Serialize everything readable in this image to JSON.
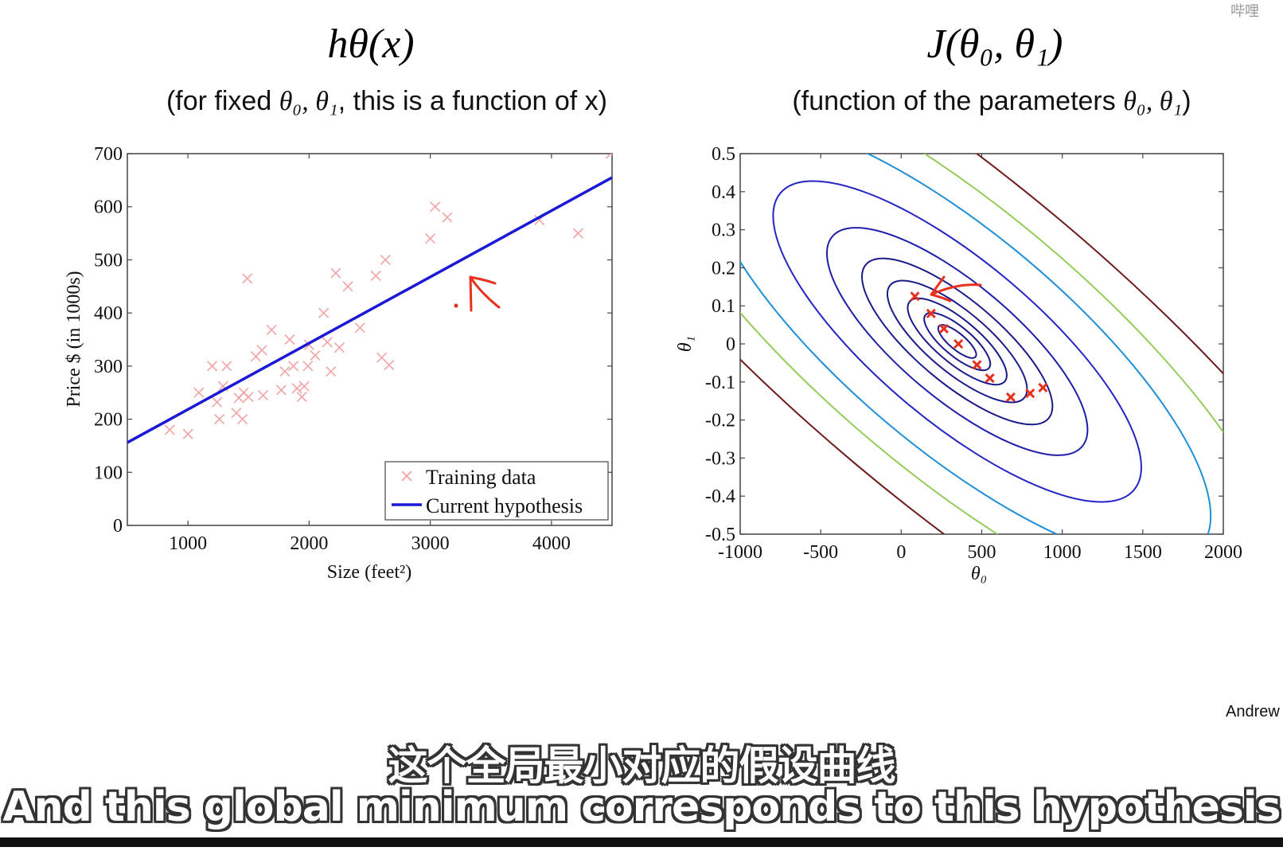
{
  "slide": {
    "left_title": "hθ(x)",
    "left_subtitle_pre": "(for fixed ",
    "left_subtitle_params": "θ₀, θ₁",
    "left_subtitle_post": ", this is a function of x)",
    "right_title": "J(θ₀, θ₁)",
    "right_subtitle_pre": "(function of the parameters ",
    "right_subtitle_params": "θ₀, θ₁",
    "right_subtitle_post": ")",
    "author": "Andrew",
    "logo_text": "哔哩"
  },
  "subtitles": {
    "chinese": "这个全局最小对应的假设曲线",
    "english": "And this global minimum corresponds to this hypothesis"
  },
  "colors": {
    "data_marker": "#f2a4a4",
    "hypothesis_line": "#1a1ad6",
    "annotation": "#e8301c",
    "gd_marker": "#e8301c"
  },
  "chart_data": [
    {
      "type": "scatter",
      "name": "hypothesis-plot",
      "xlabel": "Size (feet²)",
      "ylabel": "Price $ (in 1000s)",
      "xlim": [
        500,
        4500
      ],
      "ylim": [
        0,
        700
      ],
      "xticks": [
        1000,
        2000,
        3000,
        4000
      ],
      "yticks": [
        0,
        100,
        200,
        300,
        400,
        500,
        600,
        700
      ],
      "grid": false,
      "legend_position": "bottom-right",
      "series": [
        {
          "name": "Training data",
          "marker": "x",
          "points": [
            [
              850,
              180
            ],
            [
              1000,
              172
            ],
            [
              1090,
              250
            ],
            [
              1200,
              300
            ],
            [
              1240,
              232
            ],
            [
              1260,
              200
            ],
            [
              1290,
              262
            ],
            [
              1320,
              300
            ],
            [
              1400,
              212
            ],
            [
              1420,
              240
            ],
            [
              1450,
              200
            ],
            [
              1460,
              250
            ],
            [
              1490,
              465
            ],
            [
              1500,
              242
            ],
            [
              1560,
              318
            ],
            [
              1610,
              330
            ],
            [
              1620,
              245
            ],
            [
              1690,
              368
            ],
            [
              1770,
              255
            ],
            [
              1800,
              290
            ],
            [
              1840,
              350
            ],
            [
              1870,
              300
            ],
            [
              1900,
              258
            ],
            [
              1940,
              242
            ],
            [
              1960,
              262
            ],
            [
              1990,
              300
            ],
            [
              2000,
              340
            ],
            [
              2050,
              320
            ],
            [
              2120,
              400
            ],
            [
              2150,
              345
            ],
            [
              2180,
              290
            ],
            [
              2220,
              475
            ],
            [
              2250,
              335
            ],
            [
              2320,
              450
            ],
            [
              2420,
              372
            ],
            [
              2550,
              470
            ],
            [
              2600,
              316
            ],
            [
              2630,
              500
            ],
            [
              2660,
              302
            ],
            [
              3000,
              540
            ],
            [
              3040,
              600
            ],
            [
              3140,
              580
            ],
            [
              3900,
              575
            ],
            [
              4220,
              550
            ],
            [
              4490,
              700
            ]
          ]
        },
        {
          "name": "Current hypothesis",
          "line": [
            [
              500,
              156
            ],
            [
              4500,
              655
            ]
          ]
        }
      ]
    },
    {
      "type": "contour",
      "name": "cost-contour",
      "xlabel": "θ₀",
      "ylabel": "θ₁",
      "xlim": [
        -1000,
        2000
      ],
      "ylim": [
        -0.5,
        0.5
      ],
      "xticks": [
        -1000,
        -500,
        0,
        500,
        1000,
        1500,
        2000
      ],
      "yticks": [
        0.5,
        0.4,
        0.3,
        0.2,
        0.1,
        0,
        -0.1,
        -0.2,
        -0.3,
        -0.4,
        -0.5
      ],
      "grid": false,
      "gradient_descent_steps": [
        [
          85,
          0.125
        ],
        [
          185,
          0.08
        ],
        [
          265,
          0.04
        ],
        [
          355,
          0.0
        ],
        [
          470,
          -0.055
        ],
        [
          550,
          -0.09
        ],
        [
          680,
          -0.14
        ],
        [
          800,
          -0.13
        ],
        [
          880,
          -0.115
        ]
      ]
    }
  ]
}
